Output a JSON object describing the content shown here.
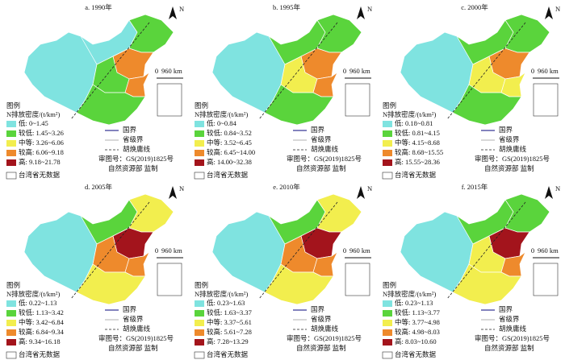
{
  "legend_common": {
    "title": "图例",
    "unit": "N排放密度/(t/km²)",
    "boundaries": [
      "国界",
      "省级界",
      "胡焕庸线"
    ],
    "approval": "审图号：GS(2019)1825号",
    "supervisor": "自然资源部 监制",
    "no_data": "台湾省无数据",
    "north": "N",
    "scale": [
      "0",
      "960 km"
    ]
  },
  "panels": [
    {
      "title": "a. 1990年",
      "classes": [
        {
          "label": "低: 0~1.45",
          "color": "#7fe3e0"
        },
        {
          "label": "较低: 1.45~3.26",
          "color": "#5ad43c"
        },
        {
          "label": "中等: 3.26~6.06",
          "color": "#f2ee4e"
        },
        {
          "label": "较高: 6.06~9.18",
          "color": "#ee8a2c"
        },
        {
          "label": "高: 9.18~21.78",
          "color": "#a3141c"
        }
      ]
    },
    {
      "title": "b. 1995年",
      "classes": [
        {
          "label": "低: 0~0.84",
          "color": "#7fe3e0"
        },
        {
          "label": "较低: 0.84~3.52",
          "color": "#5ad43c"
        },
        {
          "label": "中等: 3.52~6.45",
          "color": "#f2ee4e"
        },
        {
          "label": "较高: 6.45~14.00",
          "color": "#ee8a2c"
        },
        {
          "label": "高: 14.00~32.38",
          "color": "#a3141c"
        }
      ]
    },
    {
      "title": "c. 2000年",
      "classes": [
        {
          "label": "低: 0.18~0.81",
          "color": "#7fe3e0"
        },
        {
          "label": "较低: 0.81~4.15",
          "color": "#5ad43c"
        },
        {
          "label": "中等: 4.15~8.68",
          "color": "#f2ee4e"
        },
        {
          "label": "较高: 8.68~15.55",
          "color": "#ee8a2c"
        },
        {
          "label": "高: 15.55~28.36",
          "color": "#a3141c"
        }
      ]
    },
    {
      "title": "d. 2005年",
      "classes": [
        {
          "label": "低: 0.22~1.13",
          "color": "#7fe3e0"
        },
        {
          "label": "较低: 1.13~3.42",
          "color": "#5ad43c"
        },
        {
          "label": "中等: 3.42~6.84",
          "color": "#f2ee4e"
        },
        {
          "label": "较高: 6.84~9.34",
          "color": "#ee8a2c"
        },
        {
          "label": "高: 9.34~16.18",
          "color": "#a3141c"
        }
      ]
    },
    {
      "title": "e. 2010年",
      "classes": [
        {
          "label": "低: 0.23~1.63",
          "color": "#7fe3e0"
        },
        {
          "label": "较低: 1.63~3.37",
          "color": "#5ad43c"
        },
        {
          "label": "中等: 3.37~5.61",
          "color": "#f2ee4e"
        },
        {
          "label": "较高: 5.61~7.28",
          "color": "#ee8a2c"
        },
        {
          "label": "高: 7.28~13.29",
          "color": "#a3141c"
        }
      ]
    },
    {
      "title": "f. 2015年",
      "classes": [
        {
          "label": "低: 0.23~1.13",
          "color": "#7fe3e0"
        },
        {
          "label": "较低: 1.13~3.77",
          "color": "#5ad43c"
        },
        {
          "label": "中等: 3.77~4.98",
          "color": "#f2ee4e"
        },
        {
          "label": "较高: 4.98~8.03",
          "color": "#ee8a2c"
        },
        {
          "label": "高: 8.03~10.60",
          "color": "#a3141c"
        }
      ]
    }
  ]
}
